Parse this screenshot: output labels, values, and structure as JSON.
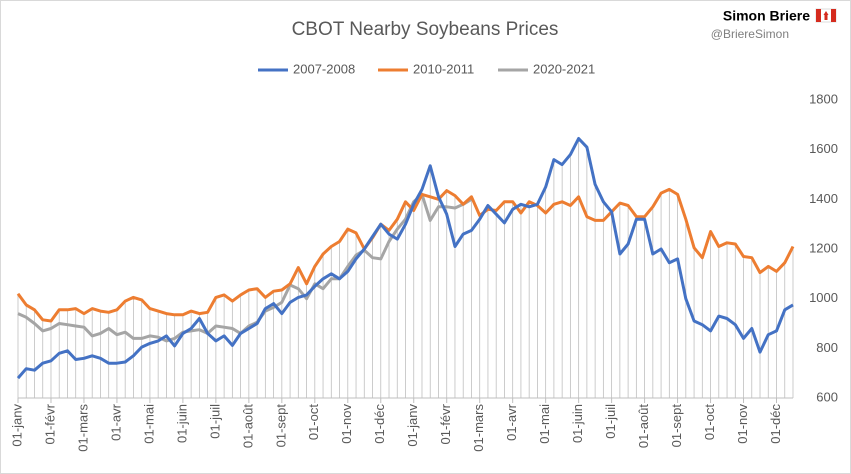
{
  "chart_data": {
    "type": "line",
    "title": "CBOT Nearby Soybeans Prices",
    "author": "Simon Briere",
    "handle": "@BriereSimon",
    "categories": [
      "01-janv",
      null,
      null,
      null,
      "01-févr",
      null,
      null,
      null,
      "01-mars",
      null,
      null,
      null,
      "01-avr",
      null,
      null,
      null,
      "01-mai",
      null,
      null,
      null,
      "01-juin",
      null,
      null,
      null,
      "01-juil",
      null,
      null,
      null,
      "01-août",
      null,
      null,
      null,
      "01-sept",
      null,
      null,
      null,
      "01-oct",
      null,
      null,
      null,
      "01-nov",
      null,
      null,
      null,
      "01-déc",
      null,
      null,
      null,
      "01-janv",
      null,
      null,
      null,
      "01-févr",
      null,
      null,
      null,
      "01-mars",
      null,
      null,
      null,
      "01-avr",
      null,
      null,
      null,
      "01-mai",
      null,
      null,
      null,
      "01-juin",
      null,
      null,
      null,
      "01-juil",
      null,
      null,
      null,
      "01-août",
      null,
      null,
      null,
      "01-sept",
      null,
      null,
      null,
      "01-oct",
      null,
      null,
      null,
      "01-nov",
      null,
      null,
      null,
      "01-déc",
      null,
      null
    ],
    "series": [
      {
        "name": "2007-2008",
        "color": "#4472c4",
        "values": [
          680,
          718,
          712,
          740,
          750,
          780,
          790,
          755,
          760,
          770,
          760,
          740,
          740,
          745,
          770,
          805,
          820,
          830,
          850,
          810,
          860,
          880,
          920,
          860,
          830,
          850,
          812,
          860,
          880,
          900,
          960,
          980,
          940,
          985,
          1005,
          1015,
          1050,
          1080,
          1100,
          1080,
          1110,
          1160,
          1200,
          1250,
          1300,
          1260,
          1240,
          1300,
          1380,
          1440,
          1535,
          1410,
          1340,
          1210,
          1260,
          1275,
          1320,
          1375,
          1340,
          1305,
          1360,
          1380,
          1370,
          1380,
          1450,
          1560,
          1540,
          1580,
          1645,
          1610,
          1460,
          1390,
          1350,
          1180,
          1220,
          1320,
          1320,
          1180,
          1200,
          1145,
          1160,
          1000,
          910,
          895,
          870,
          930,
          920,
          895,
          840,
          880,
          785,
          855,
          870,
          955,
          975
        ]
      },
      {
        "name": "2010-2011",
        "color": "#ed7d31",
        "values": [
          1020,
          975,
          955,
          915,
          910,
          955,
          955,
          960,
          940,
          960,
          950,
          945,
          955,
          990,
          1005,
          995,
          960,
          950,
          940,
          935,
          935,
          950,
          940,
          945,
          1005,
          1015,
          990,
          1015,
          1035,
          1040,
          1005,
          1030,
          1035,
          1060,
          1125,
          1060,
          1130,
          1180,
          1210,
          1230,
          1280,
          1265,
          1200,
          1245,
          1300,
          1275,
          1320,
          1390,
          1355,
          1420,
          1410,
          1400,
          1435,
          1415,
          1380,
          1410,
          1335,
          1360,
          1355,
          1390,
          1390,
          1345,
          1390,
          1375,
          1345,
          1380,
          1390,
          1375,
          1410,
          1330,
          1315,
          1315,
          1350,
          1385,
          1375,
          1330,
          1330,
          1370,
          1425,
          1440,
          1420,
          1320,
          1205,
          1165,
          1270,
          1210,
          1225,
          1220,
          1170,
          1165,
          1105,
          1130,
          1110,
          1145,
          1210
        ]
      },
      {
        "name": "2020-2021",
        "color": "#a5a5a5",
        "values": [
          940,
          925,
          900,
          870,
          880,
          900,
          895,
          890,
          885,
          850,
          860,
          880,
          855,
          865,
          840,
          840,
          850,
          845,
          830,
          840,
          865,
          870,
          875,
          860,
          890,
          885,
          880,
          860,
          890,
          905,
          950,
          965,
          985,
          1055,
          1040,
          1000,
          1060,
          1040,
          1080,
          1080,
          1130,
          1175,
          1195,
          1165,
          1160,
          1230,
          1280,
          1320,
          1390,
          1420,
          1315,
          1370,
          1370,
          1365,
          1380,
          1400,
          null,
          null,
          null,
          null,
          null,
          null,
          null,
          null,
          null,
          null,
          null,
          null,
          null,
          null,
          null,
          null,
          null,
          null,
          null,
          null,
          null,
          null,
          null,
          null,
          null,
          null,
          null,
          null,
          null,
          null,
          null,
          null,
          null,
          null,
          null,
          null,
          null,
          null,
          null
        ]
      }
    ],
    "ylim": [
      600,
      1800
    ],
    "yticks": [
      600,
      800,
      1000,
      1200,
      1400,
      1600,
      1800
    ],
    "drop_lines": true,
    "grid": false,
    "legend": "top"
  }
}
